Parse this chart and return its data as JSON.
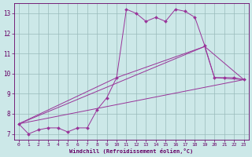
{
  "xlabel": "Windchill (Refroidissement éolien,°C)",
  "bg_color": "#cce8e8",
  "line_color": "#993399",
  "grid_color": "#99bbbb",
  "xticks": [
    0,
    1,
    2,
    3,
    4,
    5,
    6,
    7,
    8,
    9,
    10,
    11,
    12,
    13,
    14,
    15,
    16,
    17,
    18,
    19,
    20,
    21,
    22,
    23
  ],
  "yticks": [
    7,
    8,
    9,
    10,
    11,
    12,
    13
  ],
  "xlim": [
    -0.5,
    23.5
  ],
  "ylim": [
    6.7,
    13.5
  ],
  "series": [
    {
      "x": [
        0,
        1,
        2,
        3,
        4,
        5,
        6,
        7,
        8,
        9,
        10,
        11,
        12,
        13,
        14,
        15,
        16,
        17,
        18,
        19,
        20,
        21,
        22,
        23
      ],
      "y": [
        7.5,
        7.0,
        7.2,
        7.3,
        7.3,
        7.1,
        7.3,
        7.3,
        8.2,
        8.8,
        9.8,
        13.2,
        13.0,
        12.6,
        12.8,
        12.6,
        13.2,
        13.1,
        12.8,
        11.4,
        9.8,
        9.8,
        9.8,
        9.7
      ],
      "marker": true
    },
    {
      "x": [
        0,
        23
      ],
      "y": [
        7.5,
        9.7
      ],
      "marker": false
    },
    {
      "x": [
        0,
        19,
        23
      ],
      "y": [
        7.5,
        11.35,
        9.7
      ],
      "marker": false
    },
    {
      "x": [
        0,
        10,
        19,
        20,
        23
      ],
      "y": [
        7.5,
        9.8,
        11.35,
        9.8,
        9.7
      ],
      "marker": false
    }
  ]
}
